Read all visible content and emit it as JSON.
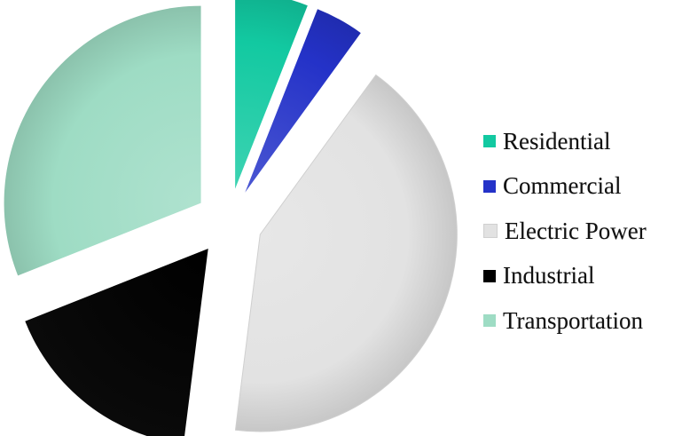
{
  "chart_data": {
    "type": "pie",
    "title": "",
    "categories": [
      "Residential",
      "Commercial",
      "Electric Power",
      "Industrial",
      "Transportation"
    ],
    "values": [
      6,
      4,
      42,
      17,
      31
    ],
    "unit": "",
    "legend_position": "right",
    "series_colors": [
      "#12c9a1",
      "#2432c8",
      "#e2e2e2",
      "#000000",
      "#9edcc4"
    ],
    "exploded": true
  }
}
